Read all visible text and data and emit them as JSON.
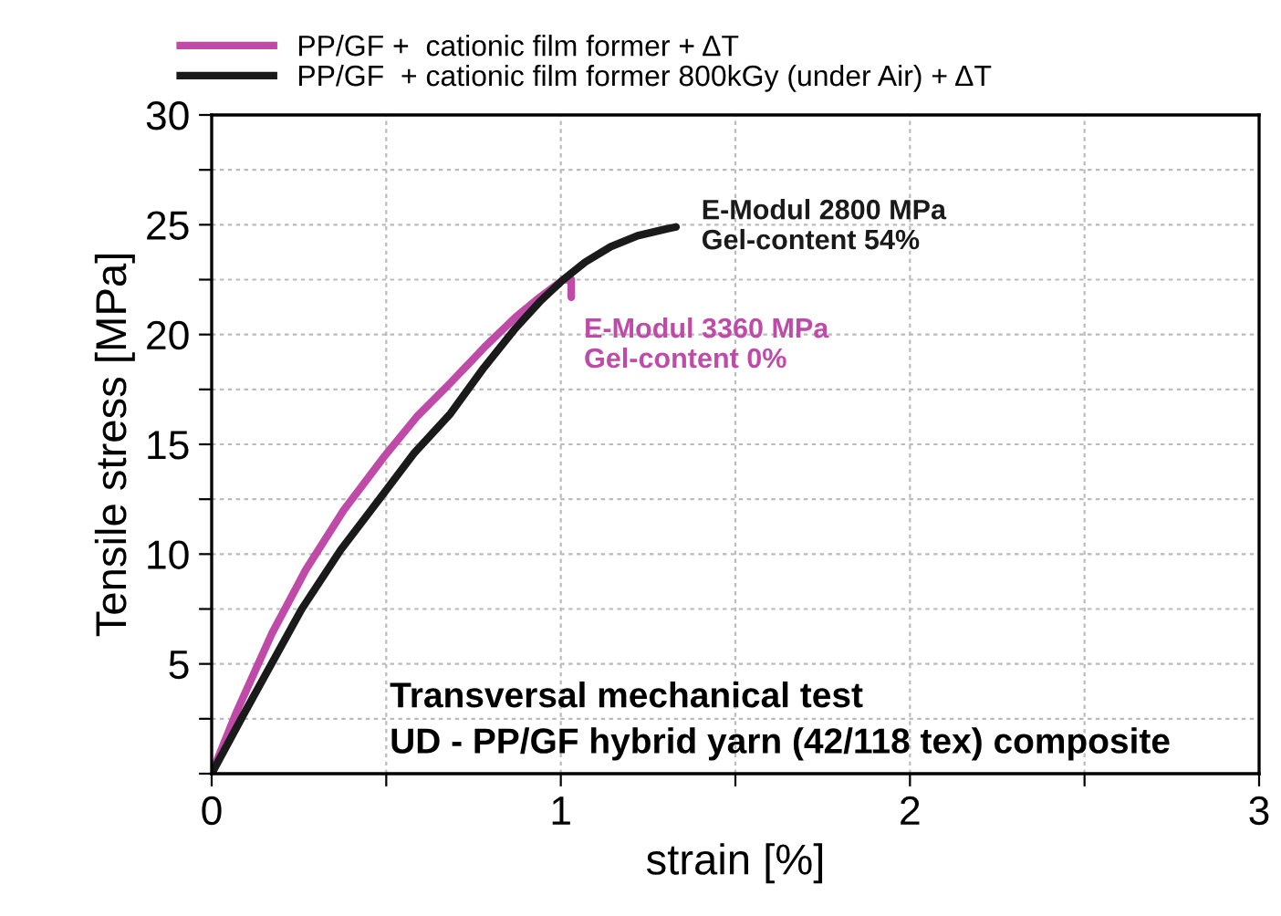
{
  "chart_data": {
    "type": "line",
    "xlabel": "strain [%]",
    "ylabel": "Tensile stress [MPa]",
    "xlim": [
      0,
      3
    ],
    "ylim": [
      0,
      30
    ],
    "xticks": [
      0,
      {
        "value": 0.5,
        "label": null
      },
      1,
      {
        "value": 1.5,
        "label": null
      },
      2,
      {
        "value": 2.5,
        "label": null
      },
      3
    ],
    "yticks": [
      {
        "value": 0,
        "label": null
      },
      {
        "value": 2.5,
        "label": null
      },
      5,
      {
        "value": 7.5,
        "label": null
      },
      10,
      {
        "value": 12.5,
        "label": null
      },
      15,
      {
        "value": 17.5,
        "label": null
      },
      20,
      {
        "value": 22.5,
        "label": null
      },
      25,
      {
        "value": 27.5,
        "label": null
      },
      30
    ],
    "grid": true,
    "legend": "top left",
    "line_style": "solid",
    "series": [
      {
        "name": "PP/GF +  cationic film former + ΔT",
        "color": "#c04aa8",
        "x": [
          0,
          0.071,
          0.173,
          0.27,
          0.378,
          0.497,
          0.59,
          0.684,
          0.78,
          0.871,
          0.94,
          1.007,
          1.03,
          1.03
        ],
        "values": [
          0,
          2.8,
          6.4,
          9.3,
          12.0,
          14.5,
          16.3,
          17.8,
          19.4,
          20.8,
          21.7,
          22.5,
          22.5,
          21.7
        ]
      },
      {
        "name": "PP/GF  + cationic film former 800kGy (under Air) + ΔT",
        "color": "#1a1a1a",
        "x": [
          0,
          0.088,
          0.258,
          0.37,
          0.48,
          0.58,
          0.684,
          0.78,
          0.871,
          0.94,
          1.007,
          1.07,
          1.143,
          1.22,
          1.3,
          1.33
        ],
        "values": [
          0,
          2.6,
          7.5,
          10.2,
          12.5,
          14.6,
          16.4,
          18.5,
          20.3,
          21.5,
          22.5,
          23.3,
          24.0,
          24.5,
          24.8,
          24.9
        ]
      }
    ],
    "annotations": [
      {
        "text": "E-Modul 2800 MPa\nGel-content 54%",
        "x": 1.33,
        "y": 24.9
      },
      {
        "text": "E-Modul 3360 MPa\nGel-content 0%",
        "x": 1.03,
        "y": 21.7
      },
      "Transversal mechanical test\nUD - PP/GF hybrid yarn (42/118 tex) composite"
    ]
  }
}
